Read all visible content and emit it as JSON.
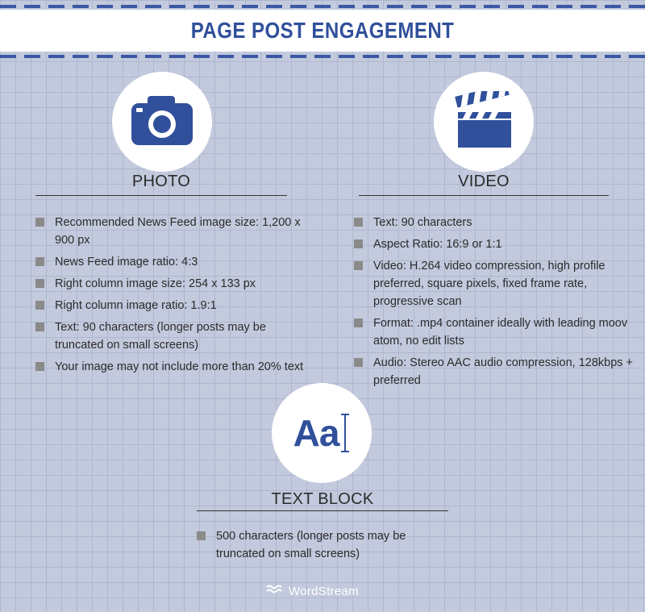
{
  "header": {
    "title": "PAGE POST ENGAGEMENT"
  },
  "photo": {
    "title": "PHOTO",
    "icon": "camera-icon",
    "items": [
      "Recommended News Feed image size: 1,200 x 900 px",
      "News Feed image ratio: 4:3",
      "Right column image size: 254 x 133 px",
      "Right column image ratio: 1.9:1",
      "Text: 90 characters (longer posts may be truncated on small screens)",
      "Your image may not include more than 20% text"
    ]
  },
  "video": {
    "title": "VIDEO",
    "icon": "clapperboard-icon",
    "items": [
      "Text: 90 characters",
      "Aspect Ratio: 16:9 or 1:1",
      "Video: H.264 video compression, high profile preferred, square pixels, fixed frame rate, progressive scan",
      "Format: .mp4 container ideally with leading moov atom, no edit lists",
      "Audio: Stereo AAC audio compression, 128kbps + preferred"
    ]
  },
  "text_block": {
    "title": "TEXT BLOCK",
    "icon": "text-cursor-icon",
    "icon_text": "Aa",
    "items": [
      "500 characters (longer posts may be truncated on small screens)"
    ]
  },
  "footer": {
    "logo_text": "WordStream",
    "icon": "wordstream-waves-icon"
  },
  "colors": {
    "accent": "#30509b",
    "background": "#c3cadd",
    "bullet": "#8a8a8a"
  }
}
